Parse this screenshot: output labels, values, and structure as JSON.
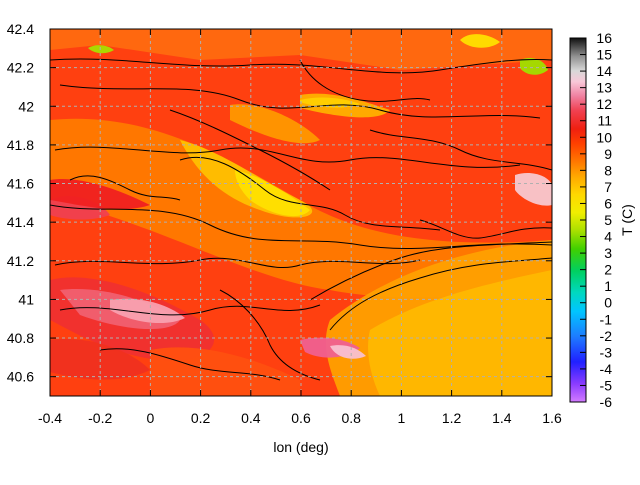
{
  "chart_data": {
    "type": "heatmap",
    "title": "",
    "xlabel": "lon (deg)",
    "ylabel": "",
    "xlim": [
      -0.4,
      1.6
    ],
    "ylim": [
      40.5,
      42.4
    ],
    "x_ticks": [
      "-0.4",
      "-0.2",
      "0",
      "0.2",
      "0.4",
      "0.6",
      "0.8",
      "1",
      "1.2",
      "1.4",
      "1.6"
    ],
    "y_ticks": [
      "40.6",
      "40.8",
      "41",
      "41.2",
      "41.4",
      "41.6",
      "41.8",
      "42",
      "42.2",
      "42.4"
    ],
    "grid": true,
    "colorbar": {
      "label": "T (C)",
      "range": [
        -6,
        16
      ],
      "ticks": [
        "16",
        "15",
        "14",
        "13",
        "12",
        "11",
        "10",
        "9",
        "8",
        "7",
        "6",
        "5",
        "4",
        "3",
        "2",
        "1",
        "0",
        "-1",
        "-2",
        "-3",
        "-4",
        "-5",
        "-6"
      ]
    },
    "description_values": {
      "typical_range_c": [
        6,
        13
      ],
      "cold_spots_c": [
        4,
        5
      ],
      "warm_spots_c": [
        12,
        13
      ]
    }
  }
}
